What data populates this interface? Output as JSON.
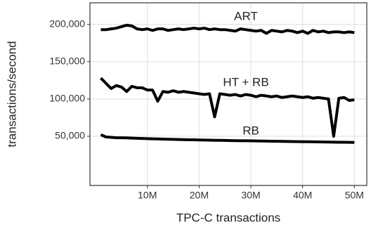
{
  "chart_data": {
    "type": "line",
    "xlabel": "TPC-C transactions",
    "ylabel": "transactions/second",
    "x": [
      1000000,
      2000000,
      3000000,
      4000000,
      5000000,
      6000000,
      7000000,
      8000000,
      9000000,
      10000000,
      11000000,
      12000000,
      13000000,
      14000000,
      15000000,
      16000000,
      17000000,
      18000000,
      19000000,
      20000000,
      21000000,
      22000000,
      23000000,
      24000000,
      25000000,
      26000000,
      27000000,
      28000000,
      29000000,
      30000000,
      31000000,
      32000000,
      33000000,
      34000000,
      35000000,
      36000000,
      37000000,
      38000000,
      39000000,
      40000000,
      41000000,
      42000000,
      43000000,
      44000000,
      45000000,
      46000000,
      47000000,
      48000000,
      49000000,
      50000000
    ],
    "series": [
      {
        "name": "ART",
        "color": "#000000",
        "values": [
          193000,
          193000,
          194000,
          195000,
          197000,
          199000,
          198000,
          194000,
          193000,
          194000,
          192000,
          194000,
          194000,
          192000,
          193000,
          194000,
          193000,
          194000,
          195000,
          194000,
          195000,
          193000,
          194000,
          193000,
          193000,
          192000,
          191000,
          194000,
          193000,
          192000,
          191000,
          192000,
          188000,
          192000,
          191000,
          190000,
          192000,
          191000,
          189000,
          191000,
          188000,
          192000,
          190000,
          191000,
          189000,
          190000,
          190000,
          189000,
          190000,
          189000
        ]
      },
      {
        "name": "HT + RB",
        "color": "#000000",
        "values": [
          128000,
          121000,
          114000,
          118000,
          116000,
          110000,
          117000,
          115000,
          115000,
          112000,
          112000,
          97000,
          110000,
          109000,
          111000,
          109000,
          110000,
          109000,
          108000,
          107000,
          106000,
          107000,
          76000,
          107000,
          106000,
          105000,
          106000,
          104000,
          106000,
          105000,
          103000,
          105000,
          104000,
          103000,
          104000,
          102000,
          103000,
          104000,
          103000,
          102000,
          103000,
          101000,
          102000,
          101000,
          100000,
          50000,
          101000,
          102000,
          98000,
          99000
        ]
      },
      {
        "name": "RB",
        "color": "#000000",
        "values": [
          52000,
          49000,
          48500,
          48000,
          48000,
          47800,
          47500,
          47300,
          47000,
          46800,
          46600,
          46400,
          46200,
          46000,
          45800,
          45600,
          45500,
          45300,
          45200,
          45000,
          44900,
          44800,
          44600,
          44500,
          44400,
          44200,
          44100,
          44000,
          43900,
          43800,
          43700,
          43600,
          43500,
          43300,
          43200,
          43100,
          43000,
          42900,
          42800,
          42700,
          42600,
          42500,
          42400,
          42300,
          42200,
          42100,
          42000,
          41900,
          41800,
          41700
        ]
      }
    ],
    "xlim": [
      -1100000,
      52400000
    ],
    "xticks": [
      {
        "value": 10000000,
        "label": "10M"
      },
      {
        "value": 20000000,
        "label": "20M"
      },
      {
        "value": 30000000,
        "label": "30M"
      },
      {
        "value": 40000000,
        "label": "40M"
      },
      {
        "value": 50000000,
        "label": "50M"
      }
    ],
    "ylim": [
      -16000,
      229000
    ],
    "yticks": [
      {
        "value": 50000,
        "label": "50,000"
      },
      {
        "value": 100000,
        "label": "100,000"
      },
      {
        "value": 150000,
        "label": "150,000"
      },
      {
        "value": 200000,
        "label": "200,000"
      }
    ],
    "grid": true
  }
}
